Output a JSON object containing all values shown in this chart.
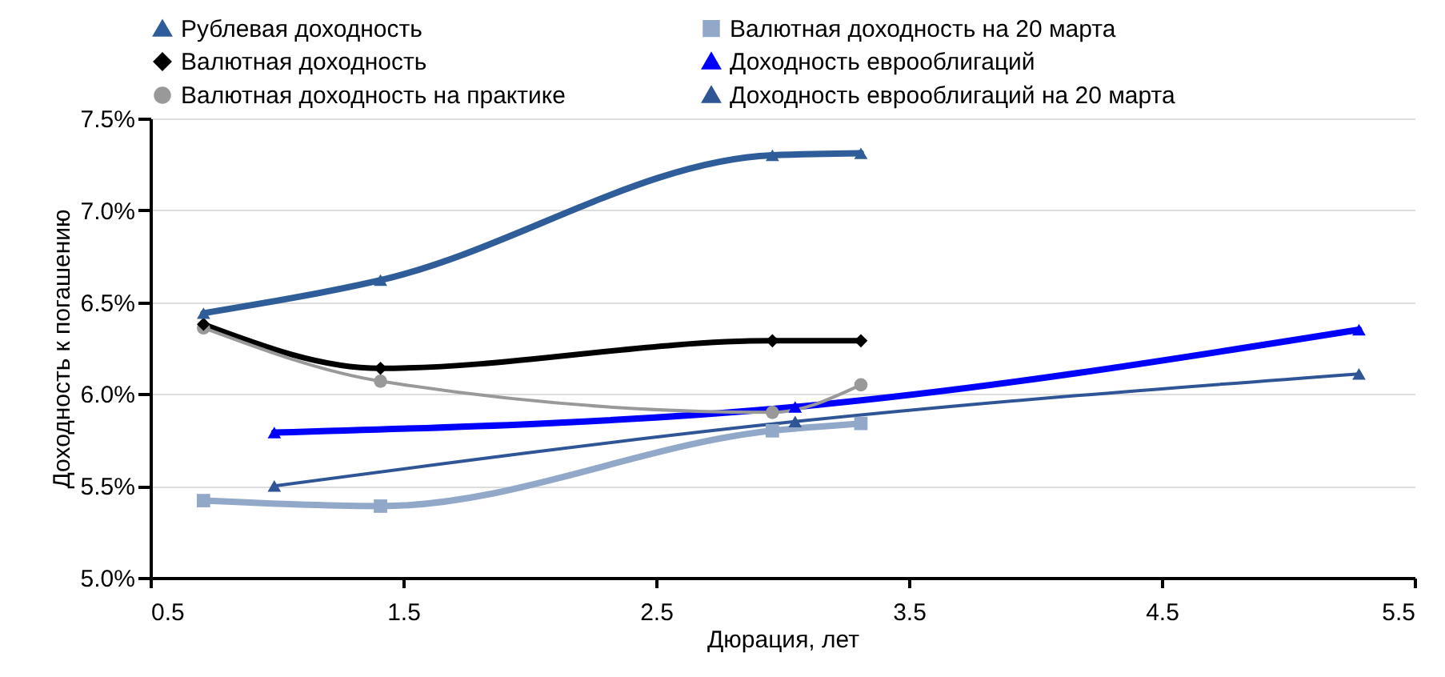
{
  "chart_data": {
    "type": "line",
    "xlabel": "Дюрация, лет",
    "ylabel": "Доходность к погашению",
    "xlim": [
      0.5,
      5.5
    ],
    "xticks": [
      0.5,
      1.5,
      2.5,
      3.5,
      4.5,
      5.5
    ],
    "ylim": [
      5,
      7.5
    ],
    "yticks": [
      {
        "value": 5,
        "label": "5.0%"
      },
      {
        "value": 5.5,
        "label": "5.5%"
      },
      {
        "value": 6,
        "label": "6.0%"
      },
      {
        "value": 6.5,
        "label": "6.5%"
      },
      {
        "value": 7,
        "label": "7.0%"
      },
      {
        "value": 7.5,
        "label": "7.5%"
      }
    ],
    "grid": "y",
    "legend": "top",
    "series": [
      {
        "name": "Рублевая доходность",
        "color": "#2f5d99",
        "marker": "triangle",
        "x": [
          0.71,
          1.41,
          2.96,
          3.31
        ],
        "values": [
          6.44,
          6.62,
          7.3,
          7.31
        ]
      },
      {
        "name": "Валютная доходность на 20 марта",
        "color": "#91a8c9",
        "marker": "square",
        "x": [
          0.71,
          1.41,
          2.96,
          3.31
        ],
        "values": [
          5.42,
          5.39,
          5.8,
          5.84
        ]
      },
      {
        "name": "Валютная доходность",
        "color": "#000000",
        "marker": "diamond",
        "x": [
          0.71,
          1.41,
          2.96,
          3.31
        ],
        "values": [
          6.38,
          6.14,
          6.29,
          6.29
        ]
      },
      {
        "name": "Доходность еврооблигаций",
        "color": "#0000ff",
        "marker": "triangle",
        "x": [
          0.99,
          3.05,
          5.28
        ],
        "values": [
          5.79,
          5.93,
          6.35
        ]
      },
      {
        "name": "Валютная доходность на практике",
        "color": "#999999",
        "marker": "circle",
        "x": [
          0.71,
          1.41,
          2.96,
          3.31
        ],
        "values": [
          6.36,
          6.07,
          5.9,
          6.05
        ]
      },
      {
        "name": "Доходность еврооблигаций на 20 марта",
        "color": "#2f5597",
        "marker": "triangle",
        "x": [
          0.99,
          3.05,
          5.28
        ],
        "values": [
          5.5,
          5.85,
          6.11
        ]
      }
    ]
  }
}
